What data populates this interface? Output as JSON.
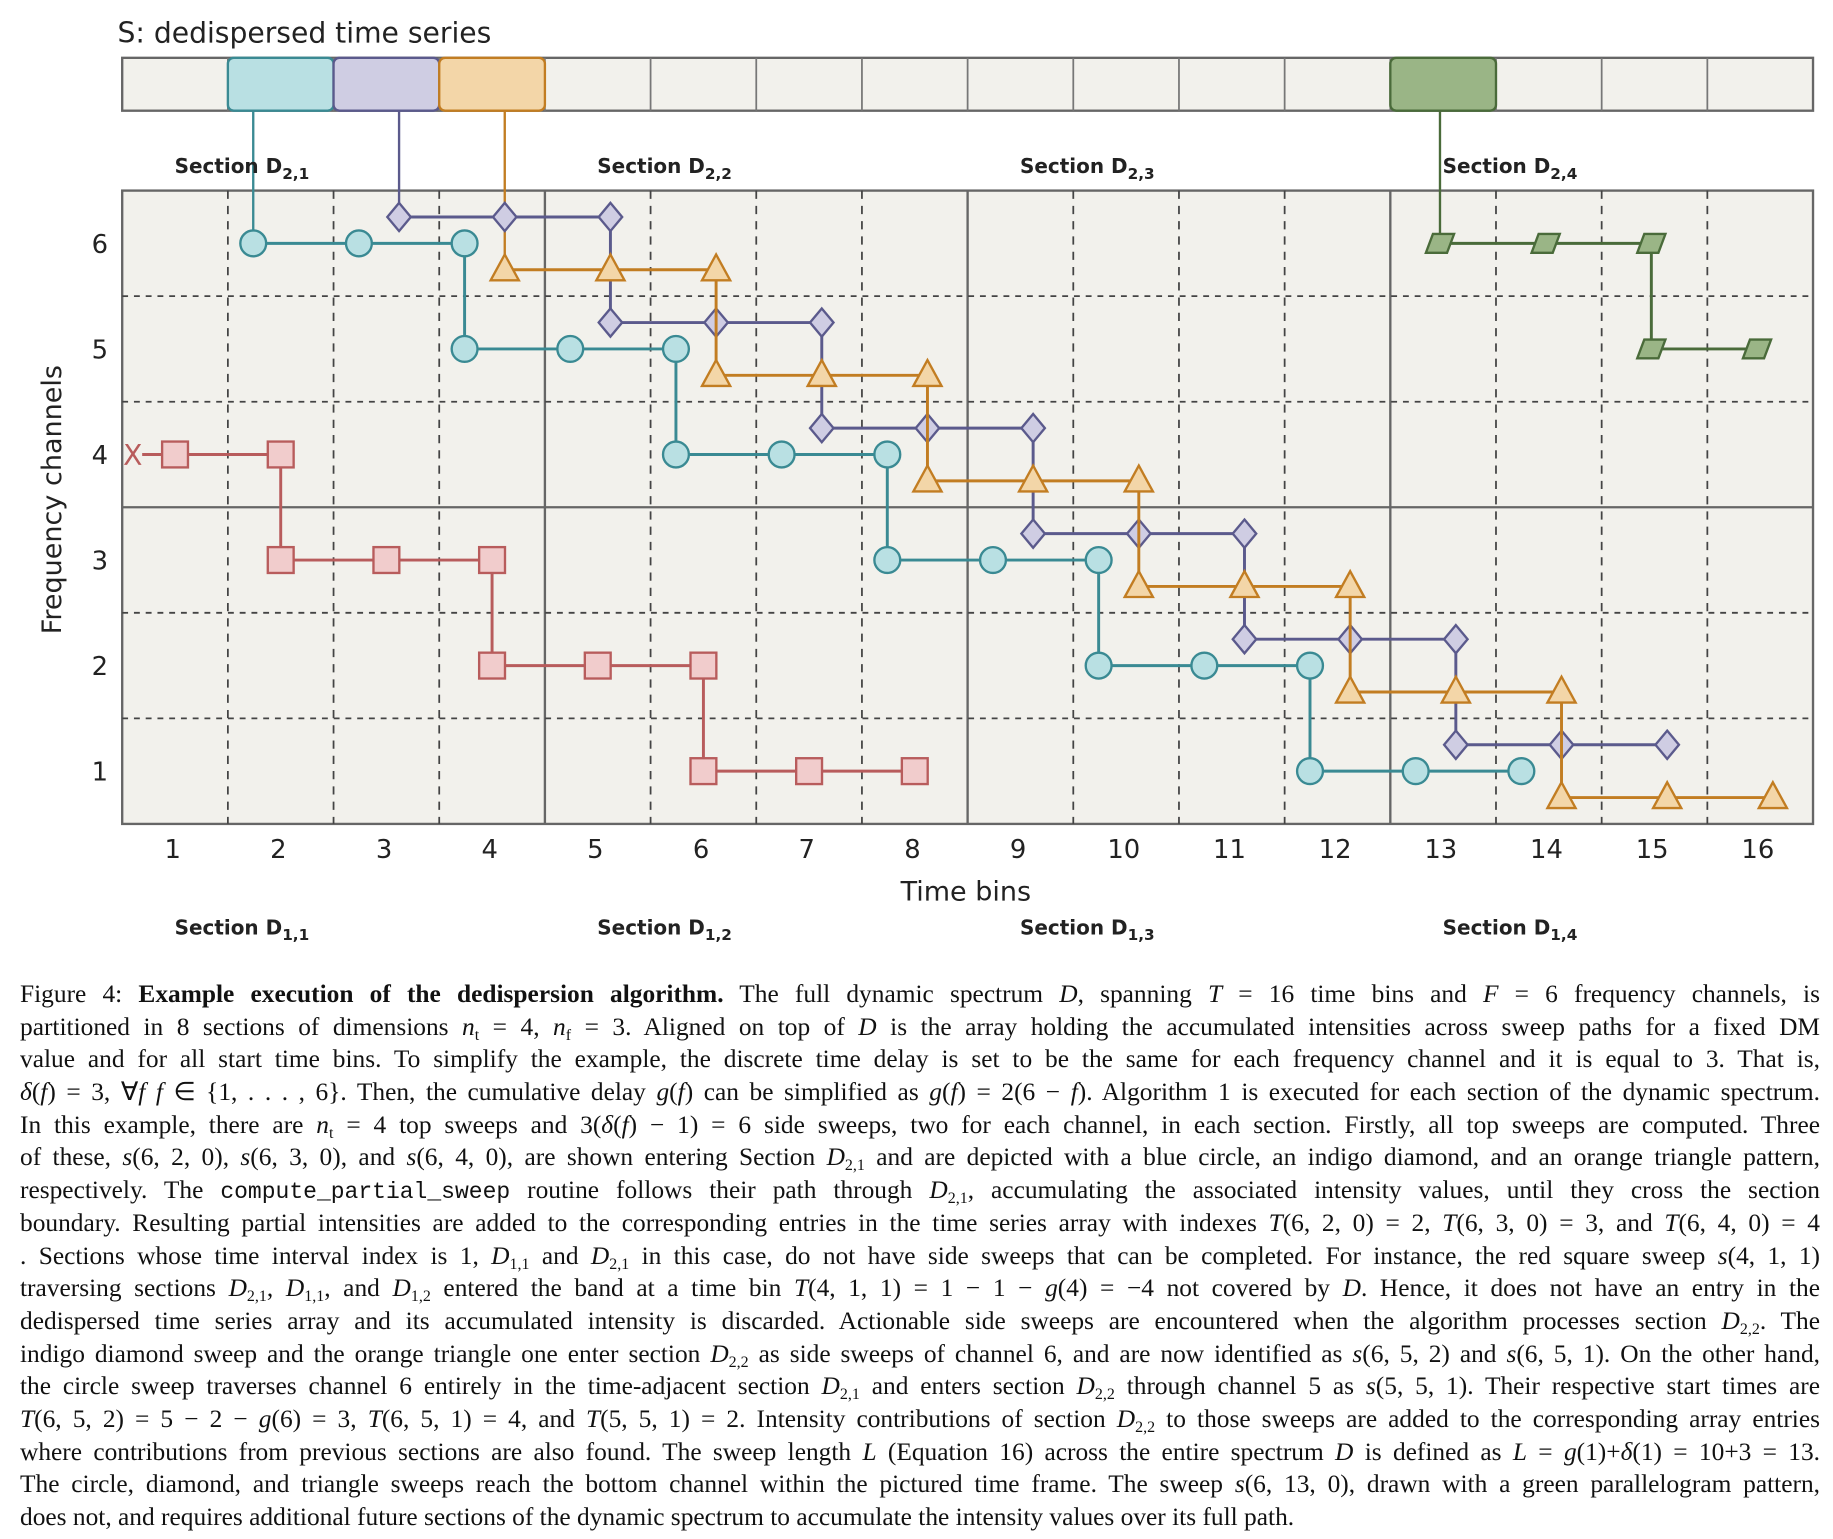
{
  "chart_data": {
    "type": "diagram",
    "array_title": "S: dedispersed time series",
    "xlabel": "Time bins",
    "ylabel": "Frequency channels",
    "x_ticks": [
      "1",
      "2",
      "3",
      "4",
      "5",
      "6",
      "7",
      "8",
      "9",
      "10",
      "11",
      "12",
      "13",
      "14",
      "15",
      "16"
    ],
    "y_ticks": [
      "1",
      "2",
      "3",
      "4",
      "5",
      "6"
    ],
    "n_time_bins": 16,
    "n_channels": 6,
    "section_width_bins": 4,
    "section_height_channels": 3,
    "sections_top": [
      {
        "label": "Section D",
        "sub": "2,1"
      },
      {
        "label": "Section D",
        "sub": "2,2"
      },
      {
        "label": "Section D",
        "sub": "2,3"
      },
      {
        "label": "Section D",
        "sub": "2,4"
      }
    ],
    "sections_bottom": [
      {
        "label": "Section D",
        "sub": "1,1"
      },
      {
        "label": "Section D",
        "sub": "1,2"
      },
      {
        "label": "Section D",
        "sub": "1,3"
      },
      {
        "label": "Section D",
        "sub": "1,4"
      }
    ],
    "colors": {
      "background": "#f2f1ec",
      "grid": "#555555"
    },
    "highlighted_cells": [
      {
        "bin": 2,
        "sweep": "circle"
      },
      {
        "bin": 3,
        "sweep": "diamond"
      },
      {
        "bin": 4,
        "sweep": "triangle"
      },
      {
        "bin": 13,
        "sweep": "parallelogram"
      }
    ],
    "discarded_marker": {
      "label": "X",
      "t": 0.6,
      "f": 4
    },
    "sweeps": [
      {
        "name": "circle",
        "shape": "circle",
        "fill": "#b9e0e3",
        "stroke": "#3a8a93",
        "start_cell": 2,
        "points": [
          [
            1.74,
            6
          ],
          [
            2.74,
            6
          ],
          [
            3.74,
            6
          ],
          [
            3.74,
            5
          ],
          [
            4.74,
            5
          ],
          [
            5.74,
            5
          ],
          [
            5.74,
            4
          ],
          [
            6.74,
            4
          ],
          [
            7.74,
            4
          ],
          [
            7.74,
            3
          ],
          [
            8.74,
            3
          ],
          [
            9.74,
            3
          ],
          [
            9.74,
            2
          ],
          [
            10.74,
            2
          ],
          [
            11.74,
            2
          ],
          [
            11.74,
            1
          ],
          [
            12.74,
            1
          ],
          [
            13.74,
            1
          ]
        ]
      },
      {
        "name": "diamond",
        "shape": "diamond",
        "fill": "#cfcde3",
        "stroke": "#5b5a8c",
        "start_cell": 3,
        "points": [
          [
            3.12,
            6.25
          ],
          [
            4.12,
            6.25
          ],
          [
            5.12,
            6.25
          ],
          [
            5.12,
            5.25
          ],
          [
            6.12,
            5.25
          ],
          [
            7.12,
            5.25
          ],
          [
            7.12,
            4.25
          ],
          [
            8.12,
            4.25
          ],
          [
            9.12,
            4.25
          ],
          [
            9.12,
            3.25
          ],
          [
            10.12,
            3.25
          ],
          [
            11.12,
            3.25
          ],
          [
            11.12,
            2.25
          ],
          [
            12.12,
            2.25
          ],
          [
            13.12,
            2.25
          ],
          [
            13.12,
            1.25
          ],
          [
            14.12,
            1.25
          ],
          [
            15.12,
            1.25
          ]
        ]
      },
      {
        "name": "triangle",
        "shape": "triangle",
        "fill": "#f3d6a8",
        "stroke": "#c27d22",
        "start_cell": 4,
        "points": [
          [
            4.12,
            5.75
          ],
          [
            5.12,
            5.75
          ],
          [
            6.12,
            5.75
          ],
          [
            6.12,
            4.75
          ],
          [
            7.12,
            4.75
          ],
          [
            8.12,
            4.75
          ],
          [
            8.12,
            3.75
          ],
          [
            9.12,
            3.75
          ],
          [
            10.12,
            3.75
          ],
          [
            10.12,
            2.75
          ],
          [
            11.12,
            2.75
          ],
          [
            12.12,
            2.75
          ],
          [
            12.12,
            1.75
          ],
          [
            13.12,
            1.75
          ],
          [
            14.12,
            1.75
          ],
          [
            14.12,
            0.75
          ],
          [
            15.12,
            0.75
          ],
          [
            16.12,
            0.75
          ]
        ]
      },
      {
        "name": "square",
        "shape": "square",
        "fill": "#f1cccc",
        "stroke": "#b85c5c",
        "start_cell": null,
        "points": [
          [
            1,
            4
          ],
          [
            2,
            4
          ],
          [
            2,
            3
          ],
          [
            3,
            3
          ],
          [
            4,
            3
          ],
          [
            4,
            2
          ],
          [
            5,
            2
          ],
          [
            6,
            2
          ],
          [
            6,
            1
          ],
          [
            7,
            1
          ],
          [
            8,
            1
          ]
        ]
      },
      {
        "name": "parallelogram",
        "shape": "parallelogram",
        "fill": "#9ab586",
        "stroke": "#4a6b3a",
        "start_cell": 13,
        "points": [
          [
            12.97,
            6
          ],
          [
            13.97,
            6
          ],
          [
            14.97,
            6
          ],
          [
            14.97,
            5
          ],
          [
            15.97,
            5
          ]
        ]
      }
    ]
  },
  "caption": {
    "lines": [
      "Figure 4: **Example execution of the dedispersion algorithm.** The full dynamic spectrum *D*, spanning *T* = 16 time bins and *F* = 6 frequency channels, is",
      "partitioned in 8 sections of dimensions *n*_{t} = 4, *n*_{f} = 3. Aligned on top of *D* is the array holding the accumulated intensities across sweep paths for a fixed DM",
      "value and for all start time bins. To simplify the example, the discrete time delay is set to be the same for each frequency channel and it is equal to 3. That is,",
      "*δ*(*f*) = 3, ∀*f f* ∈ {1, . . . , 6}. Then, the cumulative delay *g*(*f*) can be simplified as *g*(*f*) = 2(6 − *f*). Algorithm 1 is executed for each section of the dynamic spectrum.",
      "In this example, there are *n*_{t} = 4 top sweeps and 3(*δ*(*f*) − 1) = 6 side sweeps, two for each channel, in each section. Firstly, all top sweeps are computed. Three",
      "of these, *s*(6, 2, 0), *s*(6, 3, 0), and *s*(6, 4, 0), are shown entering Section *D*_{2,1} and are depicted with a blue circle, an indigo diamond, and an orange triangle pattern,",
      "respectively. The `compute_partial_sweep` routine follows their path through *D*_{2,1}, accumulating the associated intensity values, until they cross the section",
      "boundary. Resulting partial intensities are added to the corresponding entries in the time series array with indexes *T*(6, 2, 0) = 2, *T*(6, 3, 0) = 3, and *T*(6, 4, 0) = 4",
      ". Sections whose time interval index is 1, *D*_{1,1} and *D*_{2,1} in this case, do not have side sweeps that can be completed. For instance, the red square sweep *s*(4, 1, 1)",
      "traversing sections *D*_{2,1}, *D*_{1,1}, and *D*_{1,2} entered the band at a time bin *T*(4, 1, 1) = 1 − 1 − *g*(4) = −4 not covered by *D*. Hence, it does not have an entry in the",
      "dedispersed time series array and its accumulated intensity is discarded. Actionable side sweeps are encountered when the algorithm processes section *D*_{2,2}. The",
      "indigo diamond sweep and the orange triangle one enter section *D*_{2,2} as side sweeps of channel 6, and are now identified as *s*(6, 5, 2) and *s*(6, 5, 1). On the other hand,",
      "the circle sweep traverses channel 6 entirely in the time-adjacent section *D*_{2,1} and enters section *D*_{2,2} through channel 5 as *s*(5, 5, 1). Their respective start times are",
      "*T*(6, 5, 2) = 5 − 2 − *g*(6) = 3, *T*(6, 5, 1) = 4, and *T*(5, 5, 1) = 2. Intensity contributions of section *D*_{2,2} to those sweeps are added to the corresponding array entries",
      "where contributions from previous sections are also found. The sweep length *L* (Equation 16) across the entire spectrum *D* is defined as *L* = *g*(1)+*δ*(1) = 10+3 = 13.",
      "The circle, diamond, and triangle sweeps reach the bottom channel within the pictured time frame. The sweep *s*(6, 13, 0), drawn with a green parallelogram pattern,",
      "does not, and requires additional future sections of the dynamic spectrum to accumulate the intensity values over its full path."
    ]
  }
}
